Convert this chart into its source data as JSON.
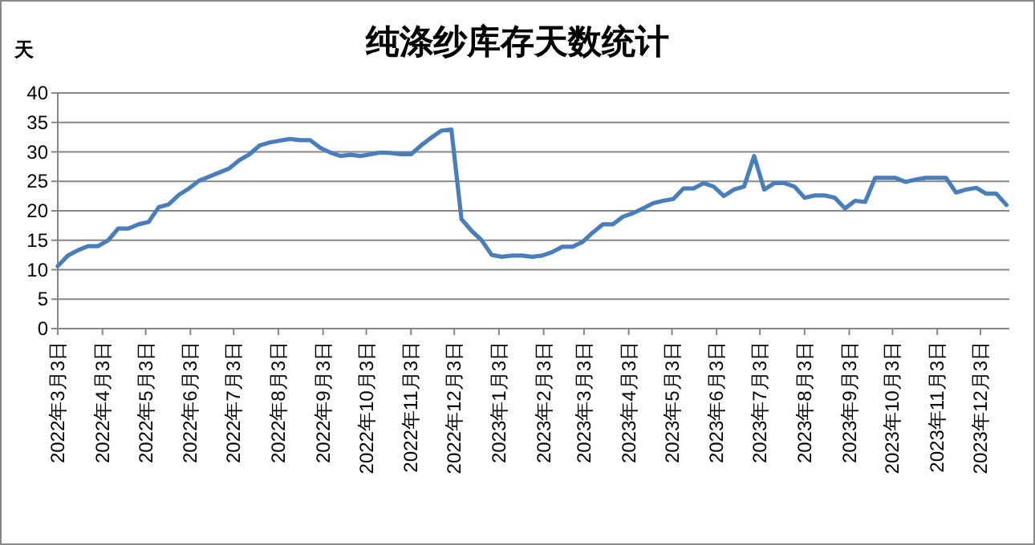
{
  "chart_data": {
    "type": "line",
    "title": "纯涤纱库存天数统计",
    "ylabel": "天",
    "x": [
      "2022-03-03",
      "2022-03-10",
      "2022-03-17",
      "2022-03-24",
      "2022-03-31",
      "2022-04-07",
      "2022-04-14",
      "2022-04-21",
      "2022-04-28",
      "2022-05-05",
      "2022-05-12",
      "2022-05-19",
      "2022-05-26",
      "2022-06-02",
      "2022-06-09",
      "2022-06-16",
      "2022-06-23",
      "2022-06-30",
      "2022-07-07",
      "2022-07-14",
      "2022-07-21",
      "2022-07-28",
      "2022-08-04",
      "2022-08-11",
      "2022-08-18",
      "2022-08-25",
      "2022-09-01",
      "2022-09-08",
      "2022-09-15",
      "2022-09-22",
      "2022-09-29",
      "2022-10-06",
      "2022-10-13",
      "2022-10-20",
      "2022-10-27",
      "2022-11-03",
      "2022-11-10",
      "2022-11-17",
      "2022-11-24",
      "2022-12-01",
      "2022-12-08",
      "2022-12-15",
      "2022-12-22",
      "2022-12-29",
      "2023-01-05",
      "2023-01-12",
      "2023-01-19",
      "2023-01-26",
      "2023-02-02",
      "2023-02-09",
      "2023-02-16",
      "2023-02-23",
      "2023-03-02",
      "2023-03-09",
      "2023-03-16",
      "2023-03-23",
      "2023-03-30",
      "2023-04-06",
      "2023-04-13",
      "2023-04-20",
      "2023-04-27",
      "2023-05-04",
      "2023-05-11",
      "2023-05-18",
      "2023-05-25",
      "2023-06-01",
      "2023-06-08",
      "2023-06-15",
      "2023-06-22",
      "2023-06-29",
      "2023-07-06",
      "2023-07-13",
      "2023-07-20",
      "2023-07-27",
      "2023-08-03",
      "2023-08-10",
      "2023-08-17",
      "2023-08-24",
      "2023-08-31",
      "2023-09-07",
      "2023-09-14",
      "2023-09-21",
      "2023-09-28",
      "2023-10-05",
      "2023-10-12",
      "2023-10-19",
      "2023-10-26",
      "2023-11-02",
      "2023-11-09",
      "2023-11-16",
      "2023-11-23",
      "2023-11-30",
      "2023-12-07",
      "2023-12-14",
      "2023-12-21"
    ],
    "series": [
      {
        "color": "#4a7ebb",
        "values": [
          10.6,
          12.4,
          13.3,
          14.0,
          14.0,
          15.0,
          17.0,
          17.0,
          17.7,
          18.1,
          20.6,
          21.1,
          22.7,
          23.8,
          25.1,
          25.8,
          26.5,
          27.2,
          28.6,
          29.6,
          31.1,
          31.6,
          31.9,
          32.2,
          32.0,
          32.0,
          30.7,
          29.9,
          29.3,
          29.5,
          29.3,
          29.6,
          29.9,
          29.8,
          29.6,
          29.6,
          31.1,
          32.4,
          33.6,
          33.8,
          18.6,
          16.6,
          15.0,
          12.5,
          12.2,
          12.4,
          12.4,
          12.2,
          12.4,
          13.0,
          13.9,
          13.9,
          14.7,
          16.3,
          17.7,
          17.7,
          19.0,
          19.6,
          20.4,
          21.3,
          21.7,
          22.0,
          23.8,
          23.8,
          24.7,
          24.1,
          22.5,
          23.6,
          24.1,
          29.3,
          23.6,
          24.7,
          24.7,
          24.1,
          22.2,
          22.6,
          22.6,
          22.2,
          20.4,
          21.7,
          21.5,
          25.6,
          25.6,
          25.6,
          24.9,
          25.3,
          25.6,
          25.6,
          25.6,
          23.1,
          23.6,
          23.9,
          22.9,
          22.9,
          21.0
        ]
      }
    ],
    "xlim": [
      "2022-03-03",
      "2023-12-23"
    ],
    "xticks": [
      {
        "value": "2022-03-03",
        "label": "2022年3月3日"
      },
      {
        "value": "2022-04-03",
        "label": "2022年4月3日"
      },
      {
        "value": "2022-05-03",
        "label": "2022年5月3日"
      },
      {
        "value": "2022-06-03",
        "label": "2022年6月3日"
      },
      {
        "value": "2022-07-03",
        "label": "2022年7月3日"
      },
      {
        "value": "2022-08-03",
        "label": "2022年8月3日"
      },
      {
        "value": "2022-09-03",
        "label": "2022年9月3日"
      },
      {
        "value": "2022-10-03",
        "label": "2022年10月3日"
      },
      {
        "value": "2022-11-03",
        "label": "2022年11月3日"
      },
      {
        "value": "2022-12-03",
        "label": "2022年12月3日"
      },
      {
        "value": "2023-01-03",
        "label": "2023年1月3日"
      },
      {
        "value": "2023-02-03",
        "label": "2023年2月3日"
      },
      {
        "value": "2023-03-03",
        "label": "2023年3月3日"
      },
      {
        "value": "2023-04-03",
        "label": "2023年4月3日"
      },
      {
        "value": "2023-05-03",
        "label": "2023年5月3日"
      },
      {
        "value": "2023-06-03",
        "label": "2023年6月3日"
      },
      {
        "value": "2023-07-03",
        "label": "2023年7月3日"
      },
      {
        "value": "2023-08-03",
        "label": "2023年8月3日"
      },
      {
        "value": "2023-09-03",
        "label": "2023年9月3日"
      },
      {
        "value": "2023-10-03",
        "label": "2023年10月3日"
      },
      {
        "value": "2023-11-03",
        "label": "2023年11月3日"
      },
      {
        "value": "2023-12-03",
        "label": "2023年12月3日"
      }
    ],
    "ylim": [
      0,
      40
    ],
    "yticks": [
      0,
      5,
      10,
      15,
      20,
      25,
      30,
      35,
      40
    ],
    "grid": "y",
    "line_style": "solid"
  }
}
